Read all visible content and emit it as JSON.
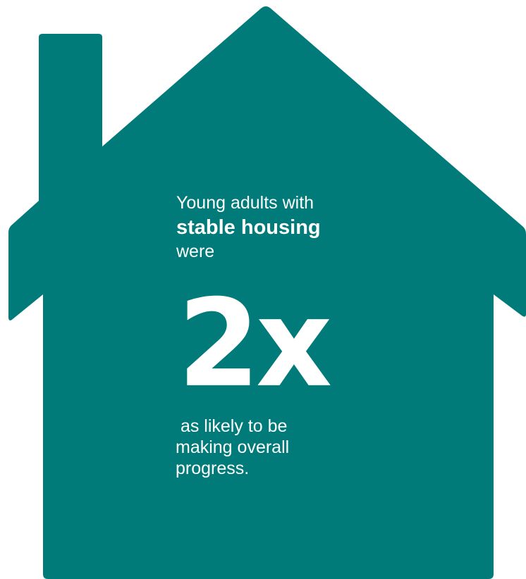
{
  "colors": {
    "house": "#007B79",
    "text": "#FFFFFF",
    "background": "#FFFFFF"
  },
  "house_icon": "house-icon",
  "statement": {
    "intro": "Young adults with",
    "emphasis": "stable housing",
    "verb": "were",
    "stat": "2x",
    "outcome_line1": " as likely to be",
    "outcome_line2": "making overall",
    "outcome_line3": "progress."
  }
}
